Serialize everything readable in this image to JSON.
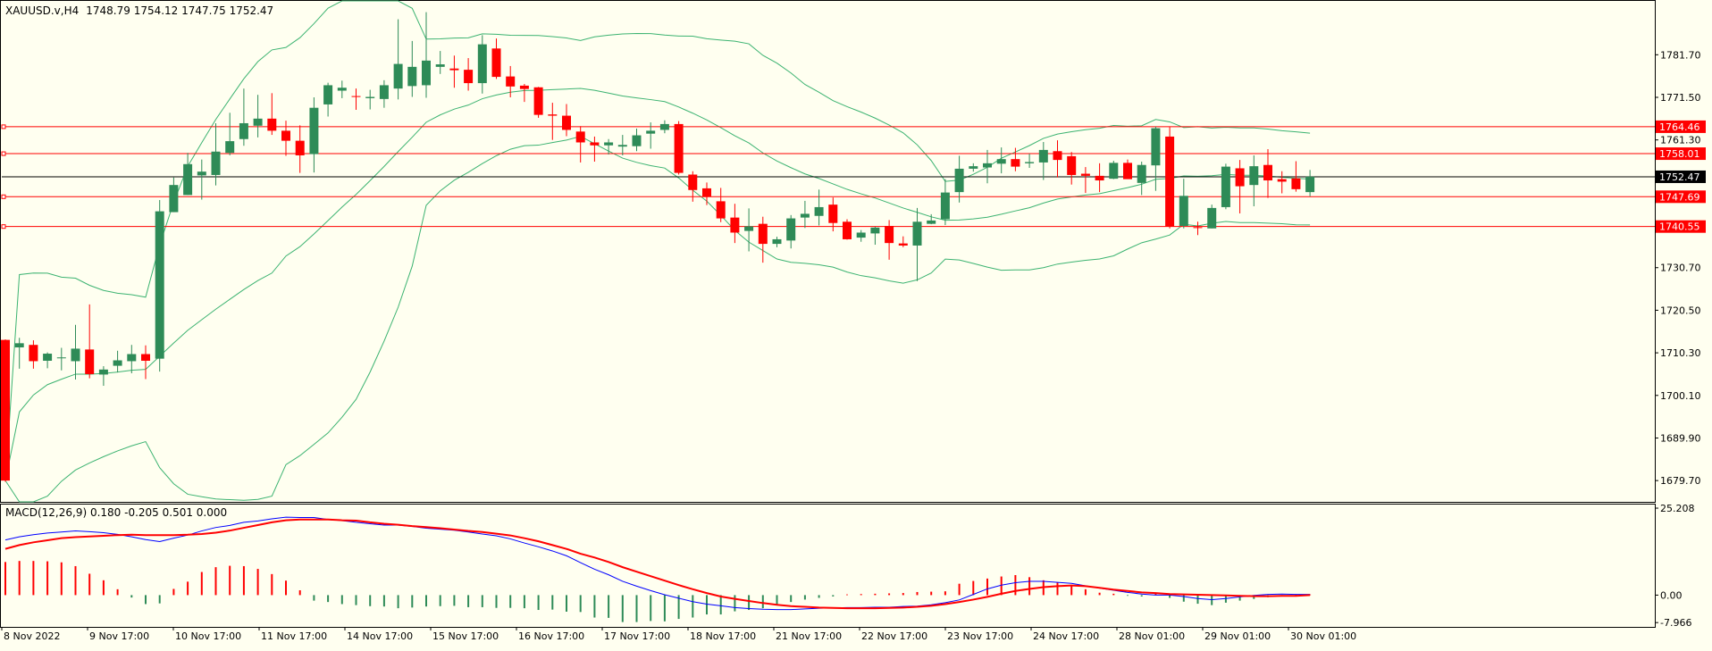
{
  "header": {
    "symbol": "XAUUSD.v,H4",
    "ohlc": "1748.79 1754.12 1747.75 1752.47"
  },
  "colors": {
    "background": "#fffff0",
    "bull": "#2e8b57",
    "bear": "#ff0000",
    "bands": "#3cb371",
    "level_line": "#ff0000",
    "current_line": "#000000",
    "macd_main": "#0000ff",
    "macd_signal": "#ff0000"
  },
  "chart_data": [
    {
      "type": "candlestick",
      "name": "XAUUSD.v,H4",
      "ylim": [
        1674.6,
        1794.6
      ],
      "y_ticks": [
        1679.7,
        1689.9,
        1700.1,
        1710.3,
        1720.5,
        1730.7,
        1761.3,
        1771.5,
        1781.7
      ],
      "y_tick_labels": [
        "1679.70",
        "1689.90",
        "1700.10",
        "1710.30",
        "1720.50",
        "1730.70",
        "1761.30",
        "1771.50",
        "1781.70"
      ],
      "x_labels": [
        "8 Nov 2022",
        "9 Nov 17:00",
        "10 Nov 17:00",
        "11 Nov 17:00",
        "14 Nov 17:00",
        "15 Nov 17:00",
        "16 Nov 17:00",
        "17 Nov 17:00",
        "18 Nov 17:00",
        "21 Nov 17:00",
        "22 Nov 17:00",
        "23 Nov 17:00",
        "24 Nov 17:00",
        "28 Nov 01:00",
        "29 Nov 01:00",
        "30 Nov 01:00"
      ],
      "price_levels": [
        {
          "label": "1764.46",
          "value": 1764.46
        },
        {
          "label": "1758.01",
          "value": 1758.01
        },
        {
          "label": "1747.69",
          "value": 1747.69
        },
        {
          "label": "1740.55",
          "value": 1740.55
        }
      ],
      "current_price": {
        "label": "1752.47",
        "value": 1752.47
      },
      "candles": [
        [
          1713.4,
          1713.5,
          1679.4,
          1679.7
        ],
        [
          1711.6,
          1713.9,
          1706.5,
          1712.6
        ],
        [
          1712.2,
          1713.3,
          1706.5,
          1708.3
        ],
        [
          1708.4,
          1710.4,
          1706.6,
          1710.1
        ],
        [
          1709.2,
          1711.5,
          1706.1,
          1709.2
        ],
        [
          1708.3,
          1717.0,
          1703.9,
          1711.3
        ],
        [
          1711.1,
          1721.9,
          1704.2,
          1705.2
        ],
        [
          1705.1,
          1707.1,
          1702.4,
          1706.3
        ],
        [
          1707.2,
          1710.8,
          1705.6,
          1708.5
        ],
        [
          1708.3,
          1712.2,
          1705.4,
          1710.0
        ],
        [
          1710.0,
          1712.1,
          1704.0,
          1708.4
        ],
        [
          1708.9,
          1746.9,
          1705.8,
          1744.2
        ],
        [
          1744.0,
          1752.3,
          1744.0,
          1750.5
        ],
        [
          1748.1,
          1758.2,
          1748.1,
          1755.5
        ],
        [
          1752.8,
          1756.6,
          1747.0,
          1753.7
        ],
        [
          1752.9,
          1765.3,
          1750.4,
          1758.5
        ],
        [
          1758.2,
          1767.8,
          1757.6,
          1761.0
        ],
        [
          1761.5,
          1773.6,
          1759.9,
          1765.3
        ],
        [
          1764.7,
          1772.1,
          1761.9,
          1766.4
        ],
        [
          1766.4,
          1772.5,
          1762.5,
          1763.5
        ],
        [
          1763.5,
          1765.9,
          1757.5,
          1761.1
        ],
        [
          1761.1,
          1764.8,
          1753.4,
          1757.6
        ],
        [
          1757.9,
          1771.5,
          1753.5,
          1769.0
        ],
        [
          1769.8,
          1775.0,
          1766.9,
          1774.4
        ],
        [
          1773.1,
          1775.5,
          1771.3,
          1773.8
        ],
        [
          1771.8,
          1773.6,
          1768.5,
          1771.7
        ],
        [
          1771.3,
          1773.3,
          1768.6,
          1771.6
        ],
        [
          1771.1,
          1775.6,
          1769.0,
          1774.4
        ],
        [
          1773.6,
          1790.2,
          1771.0,
          1779.5
        ],
        [
          1774.2,
          1785.0,
          1771.6,
          1778.8
        ],
        [
          1774.4,
          1791.9,
          1771.4,
          1780.3
        ],
        [
          1778.8,
          1782.6,
          1777.1,
          1779.4
        ],
        [
          1778.4,
          1781.5,
          1773.8,
          1778.0
        ],
        [
          1778.1,
          1780.9,
          1773.1,
          1774.9
        ],
        [
          1774.9,
          1786.4,
          1772.4,
          1784.2
        ],
        [
          1783.2,
          1785.6,
          1775.9,
          1776.4
        ],
        [
          1776.5,
          1779.0,
          1771.5,
          1774.1
        ],
        [
          1774.3,
          1774.7,
          1770.4,
          1773.5
        ],
        [
          1773.9,
          1774.0,
          1766.6,
          1767.3
        ],
        [
          1767.4,
          1770.2,
          1761.3,
          1767.1
        ],
        [
          1767.1,
          1769.9,
          1762.2,
          1763.7
        ],
        [
          1763.3,
          1764.6,
          1755.9,
          1760.7
        ],
        [
          1760.7,
          1762.1,
          1756.1,
          1760.0
        ],
        [
          1760.0,
          1761.5,
          1757.8,
          1760.7
        ],
        [
          1759.7,
          1762.5,
          1757.6,
          1760.1
        ],
        [
          1759.8,
          1764.0,
          1758.6,
          1762.4
        ],
        [
          1762.8,
          1765.5,
          1759.2,
          1763.5
        ],
        [
          1763.7,
          1766.0,
          1762.9,
          1765.1
        ],
        [
          1765.1,
          1765.8,
          1753.0,
          1753.4
        ],
        [
          1753.0,
          1753.8,
          1746.5,
          1749.3
        ],
        [
          1749.7,
          1751.1,
          1745.7,
          1747.7
        ],
        [
          1746.6,
          1749.8,
          1741.6,
          1742.5
        ],
        [
          1742.7,
          1746.0,
          1736.6,
          1739.1
        ],
        [
          1739.5,
          1744.9,
          1734.6,
          1740.6
        ],
        [
          1741.2,
          1742.9,
          1731.9,
          1736.4
        ],
        [
          1736.4,
          1738.1,
          1735.6,
          1737.5
        ],
        [
          1737.2,
          1743.3,
          1735.3,
          1742.5
        ],
        [
          1742.7,
          1746.7,
          1740.2,
          1743.6
        ],
        [
          1743.1,
          1749.4,
          1740.8,
          1745.2
        ],
        [
          1745.8,
          1747.5,
          1739.4,
          1741.4
        ],
        [
          1741.7,
          1742.3,
          1737.4,
          1737.5
        ],
        [
          1737.9,
          1739.7,
          1736.9,
          1739.1
        ],
        [
          1738.9,
          1740.5,
          1736.2,
          1740.3
        ],
        [
          1740.7,
          1742.1,
          1732.6,
          1736.6
        ],
        [
          1736.5,
          1738.2,
          1735.6,
          1736.0
        ],
        [
          1736.0,
          1745.0,
          1727.5,
          1741.7
        ],
        [
          1741.2,
          1743.5,
          1741.1,
          1742.0
        ],
        [
          1742.3,
          1751.9,
          1740.9,
          1748.7
        ],
        [
          1748.8,
          1757.5,
          1746.3,
          1754.4
        ],
        [
          1754.4,
          1755.7,
          1753.7,
          1755.0
        ],
        [
          1754.7,
          1758.9,
          1750.9,
          1755.7
        ],
        [
          1755.6,
          1759.5,
          1753.3,
          1756.7
        ],
        [
          1756.7,
          1759.4,
          1753.8,
          1754.9
        ],
        [
          1755.7,
          1758.0,
          1754.6,
          1756.0
        ],
        [
          1755.9,
          1760.8,
          1751.7,
          1758.9
        ],
        [
          1758.6,
          1761.2,
          1752.3,
          1756.5
        ],
        [
          1757.4,
          1758.4,
          1750.6,
          1752.9
        ],
        [
          1753.2,
          1754.8,
          1748.6,
          1752.7
        ],
        [
          1752.7,
          1755.7,
          1748.8,
          1751.6
        ],
        [
          1752.0,
          1756.3,
          1751.9,
          1755.8
        ],
        [
          1755.8,
          1756.6,
          1752.3,
          1751.9
        ],
        [
          1751.0,
          1756.1,
          1748.1,
          1755.3
        ],
        [
          1755.2,
          1764.5,
          1749.1,
          1764.1
        ],
        [
          1762.1,
          1764.4,
          1740.1,
          1740.6
        ],
        [
          1740.7,
          1752.0,
          1740.1,
          1747.9
        ],
        [
          1740.4,
          1741.7,
          1738.5,
          1740.2
        ],
        [
          1740.1,
          1745.8,
          1740.1,
          1745.0
        ],
        [
          1745.2,
          1755.6,
          1744.7,
          1754.9
        ],
        [
          1754.5,
          1756.5,
          1743.7,
          1750.2
        ],
        [
          1750.5,
          1757.6,
          1745.4,
          1755.0
        ],
        [
          1755.3,
          1759.1,
          1747.4,
          1751.6
        ],
        [
          1751.9,
          1753.8,
          1748.5,
          1751.3
        ],
        [
          1752.1,
          1756.2,
          1748.9,
          1749.5
        ],
        [
          1748.8,
          1754.1,
          1747.8,
          1752.5
        ]
      ]
    },
    {
      "type": "histogram_line",
      "name": "MACD(12,26,9)",
      "label": "MACD(12,26,9) 0.180 -0.205 0.501 0.000",
      "ylim": [
        -9.21,
        26.25
      ],
      "y_ticks": [
        25.208,
        0.0,
        -7.966
      ],
      "y_tick_labels": [
        "25.208",
        "0.00",
        "-7.966"
      ],
      "histogram": [
        9.6,
        9.9,
        9.9,
        9.8,
        9.5,
        8.4,
        6.2,
        4.3,
        1.7,
        -0.7,
        -2.6,
        -2.4,
        1.8,
        3.9,
        6.7,
        8.1,
        8.5,
        8.4,
        7.6,
        6.1,
        4.2,
        1.4,
        -1.6,
        -2.0,
        -2.6,
        -2.9,
        -3.2,
        -3.3,
        -3.8,
        -3.6,
        -3.3,
        -3.2,
        -3.1,
        -3.5,
        -3.5,
        -3.7,
        -3.7,
        -3.8,
        -4.3,
        -4.2,
        -4.8,
        -4.9,
        -6.5,
        -6.6,
        -7.8,
        -7.8,
        -7.5,
        -7.6,
        -6.9,
        -6.5,
        -5.6,
        -5.6,
        -4.7,
        -4.3,
        -3.8,
        -2.8,
        -2.0,
        -1.3,
        -0.8,
        -0.4,
        0.2,
        0.3,
        0.4,
        0.5,
        0.6,
        0.9,
        1.0,
        1.1,
        3.3,
        4.1,
        4.8,
        5.4,
        5.8,
        5.2,
        4.3,
        3.6,
        2.9,
        1.7,
        0.7,
        0.4,
        -0.2,
        -0.4,
        0.5,
        -0.8,
        -1.9,
        -2.5,
        -2.9,
        -2.2,
        -1.6,
        -1.1,
        -0.6,
        -0.4,
        0.2,
        0.2
      ],
      "main": [
        16.0,
        16.9,
        17.5,
        18.0,
        18.3,
        18.6,
        18.4,
        18.1,
        17.6,
        16.9,
        16.1,
        15.5,
        16.5,
        17.4,
        18.6,
        19.6,
        20.2,
        21.1,
        21.5,
        22.1,
        22.6,
        22.5,
        22.5,
        21.9,
        21.6,
        21.1,
        20.7,
        20.3,
        20.3,
        19.9,
        19.4,
        19.1,
        18.8,
        18.3,
        17.7,
        17.2,
        16.3,
        15.1,
        14.0,
        12.8,
        11.4,
        9.4,
        7.5,
        5.9,
        4.0,
        2.6,
        1.3,
        0.1,
        -0.9,
        -1.9,
        -2.6,
        -3.1,
        -3.6,
        -3.9,
        -4.1,
        -4.2,
        -4.2,
        -4.0,
        -3.8,
        -3.7,
        -3.6,
        -3.6,
        -3.5,
        -3.5,
        -3.3,
        -3.2,
        -2.8,
        -2.2,
        -1.4,
        0.2,
        1.8,
        2.9,
        3.6,
        4.0,
        4.0,
        3.7,
        3.4,
        2.7,
        2.0,
        1.4,
        0.8,
        0.3,
        0.0,
        0.0,
        -0.4,
        -1.0,
        -1.3,
        -1.0,
        -0.5,
        -0.1,
        0.2,
        0.3,
        0.2,
        0.2
      ],
      "signal": [
        13.4,
        14.5,
        15.3,
        15.9,
        16.5,
        16.8,
        17.0,
        17.2,
        17.4,
        17.5,
        17.4,
        17.4,
        17.4,
        17.5,
        17.7,
        18.1,
        18.7,
        19.5,
        20.3,
        21.1,
        21.7,
        21.9,
        21.9,
        21.9,
        21.7,
        21.6,
        21.1,
        20.7,
        20.4,
        20.0,
        19.7,
        19.4,
        19.0,
        18.6,
        18.3,
        17.8,
        17.3,
        16.5,
        15.6,
        14.5,
        13.4,
        12.0,
        10.9,
        9.6,
        8.1,
        6.8,
        5.5,
        4.2,
        2.9,
        1.7,
        0.6,
        -0.4,
        -1.1,
        -1.7,
        -2.3,
        -2.8,
        -3.2,
        -3.4,
        -3.6,
        -3.7,
        -3.8,
        -3.8,
        -3.8,
        -3.7,
        -3.6,
        -3.4,
        -3.1,
        -2.6,
        -2.0,
        -1.3,
        -0.5,
        0.4,
        1.2,
        1.8,
        2.3,
        2.6,
        2.8,
        2.6,
        2.1,
        1.6,
        1.2,
        0.8,
        0.6,
        0.3,
        0.2,
        0.1,
        0.0,
        -0.1,
        -0.2,
        -0.3,
        -0.3,
        -0.2,
        -0.2,
        0.0
      ]
    }
  ]
}
